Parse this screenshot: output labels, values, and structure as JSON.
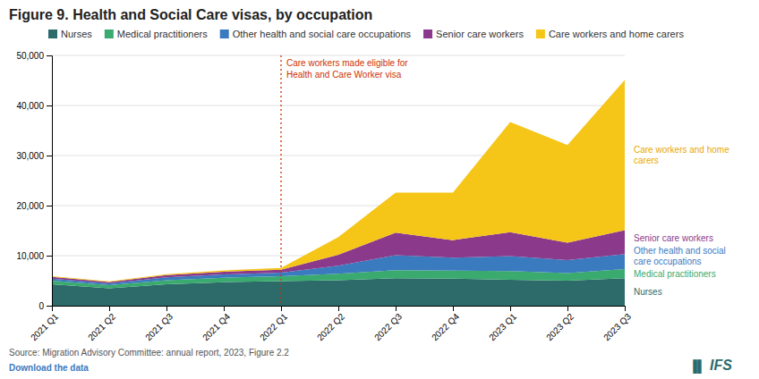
{
  "chart_data": {
    "type": "area",
    "stacked": true,
    "title": "Figure 9. Health and Social Care visas, by occupation",
    "categories": [
      "2021 Q1",
      "2021 Q2",
      "2021 Q3",
      "2021 Q4",
      "2022 Q1",
      "2022 Q2",
      "2022 Q3",
      "2022 Q4",
      "2023 Q1",
      "2023 Q2",
      "2023 Q3"
    ],
    "series": [
      {
        "name": "Nurses",
        "color": "#2d6b6b",
        "values": [
          4300,
          3500,
          4300,
          4700,
          4900,
          5100,
          5500,
          5400,
          5200,
          5000,
          5500
        ],
        "label": "Nurses",
        "label_color": "#2d6b6b"
      },
      {
        "name": "Medical practitioners",
        "color": "#3aaa6e",
        "values": [
          700,
          600,
          800,
          900,
          1000,
          1300,
          1600,
          1600,
          1700,
          1500,
          1800
        ],
        "label": "Medical practitioners",
        "label_color": "#3aaa6e"
      },
      {
        "name": "Other health and social care occupations",
        "color": "#3a7abf",
        "values": [
          400,
          350,
          550,
          650,
          700,
          1600,
          3000,
          2600,
          3000,
          2600,
          3000
        ],
        "label": "Other health and social\ncare occupations",
        "label_color": "#3a7abf"
      },
      {
        "name": "Senior care workers",
        "color": "#8b3a8b",
        "values": [
          350,
          300,
          450,
          550,
          600,
          2200,
          4500,
          3500,
          4800,
          3500,
          4800
        ],
        "label": "Senior care workers",
        "label_color": "#8b3a8b"
      },
      {
        "name": "Care workers and home carers",
        "color": "#f5c518",
        "values": [
          150,
          100,
          200,
          250,
          350,
          3500,
          8000,
          9500,
          22000,
          19500,
          30000
        ],
        "label": "Care workers and home\ncarers",
        "label_color": "#e8a800"
      }
    ],
    "ylim": [
      0,
      50000
    ],
    "yticks": [
      0,
      {
        "value": 10000,
        "label": "10,000"
      },
      {
        "value": 20000,
        "label": "20,000"
      },
      {
        "value": 30000,
        "label": "30,000"
      },
      {
        "value": 40000,
        "label": "40,000"
      },
      {
        "value": 50000,
        "label": "50,000"
      }
    ],
    "grid": true,
    "legend": "top",
    "annotations": [
      {
        "text": "Care workers made eligible for\nHealth and Care Worker visa",
        "x": "2022 Q1",
        "color": "#cc3300"
      }
    ],
    "source": "Source: Migration Advisory Committee: annual report, 2023, Figure 2.2",
    "download_text": "Download the data",
    "download_color": "#3a7abf",
    "logo": "IFS",
    "icon": "▐▌",
    "logo_color": "#2d6b6b"
  }
}
